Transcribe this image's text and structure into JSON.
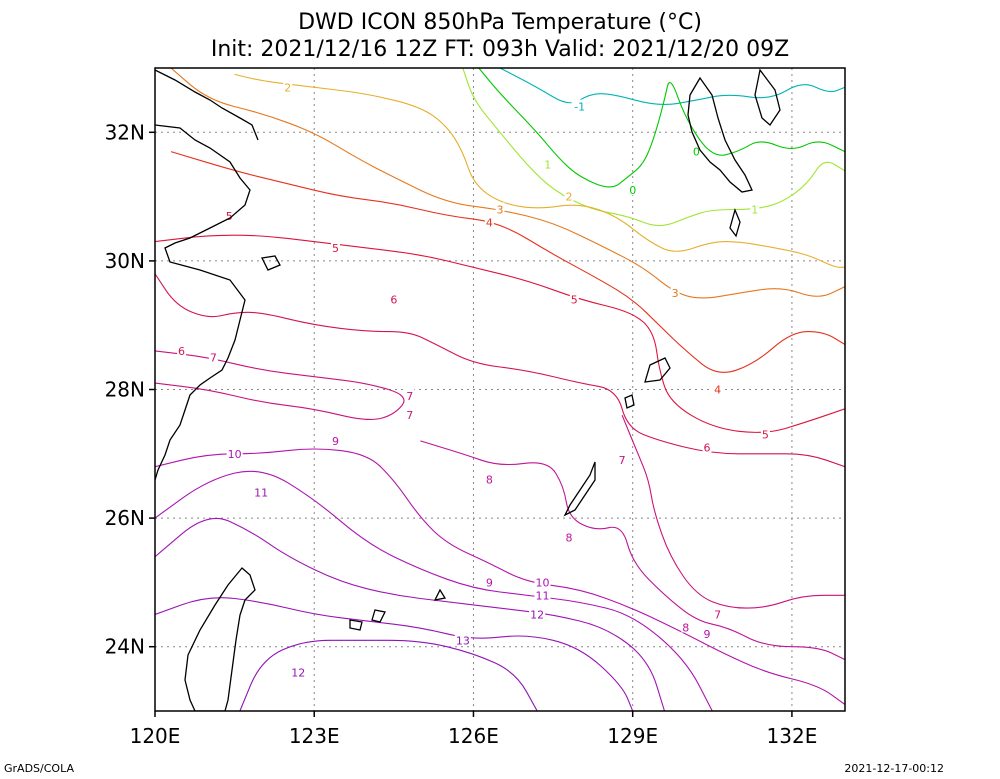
{
  "title_line1": "DWD ICON 850hPa Temperature (°C)",
  "title_line2": "Init: 2021/12/16 12Z  FT: 093h  Valid: 2021/12/20 09Z",
  "footer_left": "GrADS/COLA",
  "footer_right": "2021-12-17-00:12",
  "map": {
    "lon_range": [
      120,
      133
    ],
    "lat_range": [
      23,
      33
    ],
    "lon_ticks": [
      {
        "value": 120,
        "label": "120E"
      },
      {
        "value": 123,
        "label": "123E"
      },
      {
        "value": 126,
        "label": "126E"
      },
      {
        "value": 129,
        "label": "129E"
      },
      {
        "value": 132,
        "label": "132E"
      }
    ],
    "lat_ticks": [
      {
        "value": 24,
        "label": "24N"
      },
      {
        "value": 26,
        "label": "26N"
      },
      {
        "value": 28,
        "label": "28N"
      },
      {
        "value": 30,
        "label": "30N"
      },
      {
        "value": 32,
        "label": "32N"
      }
    ],
    "grid": "dotted"
  },
  "contours": [
    {
      "label": "-1",
      "color": "#00b4b4",
      "points": [
        [
          126.5,
          33
        ],
        [
          127.2,
          32.7
        ],
        [
          127.8,
          32.4
        ],
        [
          128.2,
          32.6
        ],
        [
          128.6,
          32.6
        ],
        [
          129.5,
          32.4
        ],
        [
          130.2,
          32.5
        ],
        [
          130.8,
          32.6
        ],
        [
          131.6,
          32.5
        ],
        [
          132.2,
          32.8
        ],
        [
          132.7,
          32.6
        ],
        [
          133,
          32.7
        ]
      ]
    },
    {
      "label": "0",
      "color": "#00c800",
      "points": [
        [
          126.1,
          33
        ],
        [
          126.5,
          32.6
        ],
        [
          127.2,
          32.0
        ],
        [
          127.6,
          31.6
        ],
        [
          128.0,
          31.3
        ],
        [
          128.6,
          31.1
        ],
        [
          128.9,
          31.3
        ],
        [
          129.2,
          31.5
        ],
        [
          129.4,
          31.9
        ],
        [
          129.6,
          32.5
        ],
        [
          129.7,
          32.9
        ],
        [
          130.0,
          32.2
        ],
        [
          130.5,
          31.6
        ],
        [
          131.0,
          31.7
        ],
        [
          131.4,
          31.9
        ],
        [
          132.0,
          31.7
        ],
        [
          132.5,
          31.9
        ],
        [
          133,
          31.7
        ]
      ]
    },
    {
      "label": "1",
      "color": "#a0e632",
      "points": [
        [
          125.8,
          33
        ],
        [
          126.0,
          32.5
        ],
        [
          126.5,
          32.0
        ],
        [
          127.0,
          31.5
        ],
        [
          127.5,
          31.1
        ],
        [
          128.2,
          30.8
        ],
        [
          128.9,
          30.7
        ],
        [
          129.5,
          30.5
        ],
        [
          130.1,
          30.7
        ],
        [
          130.5,
          30.8
        ],
        [
          131.3,
          30.8
        ],
        [
          131.8,
          30.9
        ],
        [
          132.3,
          31.2
        ],
        [
          132.6,
          31.6
        ],
        [
          133,
          31.4
        ]
      ]
    },
    {
      "label": "2",
      "color": "#e6af2d",
      "points": [
        [
          121.5,
          32.9
        ],
        [
          122.0,
          32.8
        ],
        [
          123.0,
          32.7
        ],
        [
          124.0,
          32.6
        ],
        [
          125.0,
          32.4
        ],
        [
          125.5,
          32.1
        ],
        [
          125.8,
          31.7
        ],
        [
          126.0,
          31.2
        ],
        [
          126.5,
          30.9
        ],
        [
          127.2,
          30.8
        ],
        [
          128.0,
          30.9
        ],
        [
          128.7,
          30.7
        ],
        [
          129.3,
          30.3
        ],
        [
          129.8,
          30.1
        ],
        [
          130.5,
          30.3
        ],
        [
          131.0,
          30.3
        ],
        [
          131.7,
          30.2
        ],
        [
          132.3,
          30.1
        ],
        [
          132.8,
          29.9
        ],
        [
          133,
          29.9
        ]
      ]
    },
    {
      "label": "3",
      "color": "#e6781e",
      "points": [
        [
          120.3,
          33
        ],
        [
          121.0,
          32.5
        ],
        [
          122.0,
          32.3
        ],
        [
          123.0,
          32.0
        ],
        [
          123.8,
          31.6
        ],
        [
          124.5,
          31.3
        ],
        [
          125.5,
          30.9
        ],
        [
          126.5,
          30.8
        ],
        [
          127.5,
          30.6
        ],
        [
          128.5,
          30.2
        ],
        [
          129.2,
          29.9
        ],
        [
          129.8,
          29.5
        ],
        [
          130.3,
          29.4
        ],
        [
          131.0,
          29.5
        ],
        [
          131.8,
          29.6
        ],
        [
          132.5,
          29.4
        ],
        [
          133,
          29.6
        ]
      ]
    },
    {
      "label": "4",
      "color": "#e6321e",
      "points": [
        [
          120.3,
          31.7
        ],
        [
          121.5,
          31.4
        ],
        [
          122.5,
          31.2
        ],
        [
          123.5,
          31.0
        ],
        [
          124.5,
          30.9
        ],
        [
          125.5,
          30.7
        ],
        [
          126.5,
          30.6
        ],
        [
          127.5,
          30.1
        ],
        [
          128.4,
          29.7
        ],
        [
          129.0,
          29.4
        ],
        [
          129.5,
          29.0
        ],
        [
          130.0,
          28.6
        ],
        [
          130.6,
          28.2
        ],
        [
          131.3,
          28.4
        ],
        [
          132.0,
          28.9
        ],
        [
          132.6,
          28.9
        ],
        [
          133,
          28.7
        ]
      ]
    },
    {
      "label": "5",
      "color": "#dc143c",
      "points": [
        [
          120.0,
          30.3
        ],
        [
          121.0,
          30.4
        ],
        [
          122.0,
          30.4
        ],
        [
          123.0,
          30.3
        ],
        [
          124.0,
          30.2
        ],
        [
          125.0,
          30.1
        ],
        [
          126.0,
          29.9
        ],
        [
          127.0,
          29.7
        ],
        [
          128.0,
          29.4
        ],
        [
          129.0,
          29.2
        ],
        [
          129.4,
          28.9
        ],
        [
          129.5,
          28.3
        ],
        [
          129.7,
          27.8
        ],
        [
          130.5,
          27.4
        ],
        [
          131.5,
          27.3
        ],
        [
          132.3,
          27.5
        ],
        [
          133,
          27.7
        ]
      ]
    },
    {
      "label": "6",
      "color": "#d2145a",
      "points": [
        [
          120.0,
          29.8
        ],
        [
          120.4,
          29.3
        ],
        [
          121.0,
          29.1
        ],
        [
          121.5,
          29.2
        ],
        [
          122.0,
          29.2
        ],
        [
          123.0,
          29.0
        ],
        [
          124.0,
          28.9
        ],
        [
          124.8,
          28.9
        ],
        [
          125.3,
          28.7
        ],
        [
          126.0,
          28.4
        ],
        [
          127.0,
          28.3
        ],
        [
          128.0,
          28.1
        ],
        [
          128.7,
          28.0
        ],
        [
          128.9,
          27.4
        ],
        [
          129.5,
          27.2
        ],
        [
          130.5,
          27.0
        ],
        [
          131.5,
          27.0
        ],
        [
          132.3,
          27.0
        ],
        [
          133,
          26.8
        ]
      ]
    },
    {
      "label": "7",
      "color": "#c8147d",
      "points": [
        [
          120.0,
          28.6
        ],
        [
          121.0,
          28.5
        ],
        [
          122.0,
          28.3
        ],
        [
          123.0,
          28.2
        ],
        [
          124.0,
          28.1
        ],
        [
          124.8,
          27.9
        ],
        [
          124.5,
          27.6
        ],
        [
          124.0,
          27.5
        ],
        [
          123.0,
          27.7
        ],
        [
          122.0,
          27.8
        ],
        [
          121.0,
          28.0
        ],
        [
          120.0,
          28.1
        ]
      ]
    },
    {
      "label": "7",
      "color": "#c8147d",
      "points": [
        [
          128.8,
          27.6
        ],
        [
          129.1,
          27.0
        ],
        [
          129.3,
          26.6
        ],
        [
          129.4,
          26.1
        ],
        [
          129.7,
          25.4
        ],
        [
          130.2,
          24.8
        ],
        [
          130.8,
          24.6
        ],
        [
          131.5,
          24.6
        ],
        [
          132.2,
          24.8
        ],
        [
          133,
          24.8
        ]
      ]
    },
    {
      "label": "8",
      "color": "#be1496",
      "points": [
        [
          125.0,
          27.2
        ],
        [
          125.8,
          27.0
        ],
        [
          126.5,
          26.8
        ],
        [
          127.4,
          26.9
        ],
        [
          127.7,
          26.5
        ],
        [
          127.8,
          26.0
        ],
        [
          128.3,
          25.8
        ],
        [
          128.8,
          25.9
        ],
        [
          129.0,
          25.3
        ],
        [
          129.6,
          24.8
        ],
        [
          130.2,
          24.4
        ],
        [
          130.8,
          24.3
        ],
        [
          131.5,
          24.0
        ],
        [
          132.5,
          24.0
        ],
        [
          133,
          23.8
        ]
      ]
    },
    {
      "label": "9",
      "color": "#b414aa",
      "points": [
        [
          120.0,
          26.8
        ],
        [
          121.0,
          27.0
        ],
        [
          122.0,
          27.0
        ],
        [
          123.0,
          27.1
        ],
        [
          124.0,
          27.0
        ],
        [
          124.5,
          26.6
        ],
        [
          125.0,
          26.0
        ],
        [
          125.5,
          25.6
        ],
        [
          126.3,
          25.3
        ],
        [
          127.0,
          25.0
        ],
        [
          128.0,
          24.9
        ],
        [
          129.0,
          24.6
        ],
        [
          130.0,
          24.2
        ],
        [
          130.7,
          23.9
        ],
        [
          131.5,
          23.6
        ],
        [
          132.5,
          23.4
        ],
        [
          133,
          23.1
        ]
      ]
    },
    {
      "label": "10",
      "color": "#aa14b4",
      "points": [
        [
          120.0,
          26.0
        ],
        [
          121.0,
          26.6
        ],
        [
          122.0,
          26.8
        ],
        [
          123.0,
          26.3
        ],
        [
          124.0,
          25.6
        ],
        [
          125.0,
          25.2
        ],
        [
          126.0,
          24.9
        ],
        [
          127.0,
          24.8
        ],
        [
          128.0,
          24.7
        ],
        [
          129.0,
          24.5
        ],
        [
          130.0,
          23.8
        ],
        [
          130.5,
          23.0
        ]
      ]
    },
    {
      "label": "11",
      "color": "#a014b4",
      "points": [
        [
          120.0,
          25.4
        ],
        [
          121.0,
          26.1
        ],
        [
          121.8,
          25.8
        ],
        [
          122.5,
          25.4
        ],
        [
          123.5,
          25.0
        ],
        [
          124.5,
          24.8
        ],
        [
          125.5,
          24.7
        ],
        [
          126.5,
          24.6
        ],
        [
          127.5,
          24.5
        ],
        [
          128.5,
          24.3
        ],
        [
          129.3,
          23.8
        ],
        [
          129.6,
          23.0
        ]
      ]
    },
    {
      "label": "12",
      "color": "#9614b4",
      "points": [
        [
          120.0,
          24.5
        ],
        [
          121.0,
          24.8
        ],
        [
          122.0,
          24.7
        ],
        [
          123.0,
          24.5
        ],
        [
          124.0,
          24.4
        ],
        [
          125.0,
          24.3
        ],
        [
          126.0,
          24.1
        ],
        [
          127.0,
          24.2
        ],
        [
          128.0,
          24.0
        ],
        [
          128.8,
          23.4
        ],
        [
          129.0,
          23.0
        ]
      ]
    },
    {
      "label": "13",
      "color": "#8c14b4",
      "points": [
        [
          121.6,
          23.0
        ],
        [
          122.0,
          23.8
        ],
        [
          122.8,
          24.1
        ],
        [
          123.8,
          24.1
        ],
        [
          125.0,
          24.1
        ],
        [
          126.0,
          23.9
        ],
        [
          126.8,
          23.6
        ],
        [
          127.2,
          23.0
        ]
      ]
    }
  ],
  "contour_labels": [
    {
      "text": "-1",
      "lon": 128.0,
      "lat": 32.4,
      "color": "#00b4b4"
    },
    {
      "text": "0",
      "lon": 129.0,
      "lat": 31.1,
      "color": "#00c800"
    },
    {
      "text": "0",
      "lon": 130.2,
      "lat": 31.7,
      "color": "#00c800"
    },
    {
      "text": "1",
      "lon": 127.4,
      "lat": 31.5,
      "color": "#a0e632"
    },
    {
      "text": "1",
      "lon": 131.3,
      "lat": 30.8,
      "color": "#a0e632"
    },
    {
      "text": "2",
      "lon": 122.5,
      "lat": 32.7,
      "color": "#e6af2d"
    },
    {
      "text": "2",
      "lon": 127.8,
      "lat": 31.0,
      "color": "#e6af2d"
    },
    {
      "text": "3",
      "lon": 126.5,
      "lat": 30.8,
      "color": "#e6781e"
    },
    {
      "text": "3",
      "lon": 129.8,
      "lat": 29.5,
      "color": "#e6781e"
    },
    {
      "text": "4",
      "lon": 126.3,
      "lat": 30.6,
      "color": "#e6321e"
    },
    {
      "text": "4",
      "lon": 130.6,
      "lat": 28.0,
      "color": "#e6321e"
    },
    {
      "text": "5",
      "lon": 123.4,
      "lat": 30.2,
      "color": "#dc143c"
    },
    {
      "text": "5",
      "lon": 127.9,
      "lat": 29.4,
      "color": "#dc143c"
    },
    {
      "text": "5",
      "lon": 131.5,
      "lat": 27.3,
      "color": "#dc143c"
    },
    {
      "text": "5",
      "lon": 121.4,
      "lat": 30.7,
      "color": "#dc143c"
    },
    {
      "text": "6",
      "lon": 124.5,
      "lat": 29.4,
      "color": "#d2145a"
    },
    {
      "text": "6",
      "lon": 120.5,
      "lat": 28.6,
      "color": "#d2145a"
    },
    {
      "text": "6",
      "lon": 130.4,
      "lat": 27.1,
      "color": "#d2145a"
    },
    {
      "text": "7",
      "lon": 121.1,
      "lat": 28.5,
      "color": "#c8147d"
    },
    {
      "text": "7",
      "lon": 124.8,
      "lat": 27.9,
      "color": "#c8147d"
    },
    {
      "text": "7",
      "lon": 124.8,
      "lat": 27.6,
      "color": "#c8147d"
    },
    {
      "text": "7",
      "lon": 128.8,
      "lat": 26.9,
      "color": "#c8147d"
    },
    {
      "text": "7",
      "lon": 130.6,
      "lat": 24.5,
      "color": "#c8147d"
    },
    {
      "text": "8",
      "lon": 126.3,
      "lat": 26.6,
      "color": "#be1496"
    },
    {
      "text": "8",
      "lon": 127.8,
      "lat": 25.7,
      "color": "#be1496"
    },
    {
      "text": "8",
      "lon": 130.0,
      "lat": 24.3,
      "color": "#be1496"
    },
    {
      "text": "9",
      "lon": 123.4,
      "lat": 27.2,
      "color": "#b414aa"
    },
    {
      "text": "9",
      "lon": 126.3,
      "lat": 25.0,
      "color": "#b414aa"
    },
    {
      "text": "9",
      "lon": 130.4,
      "lat": 24.2,
      "color": "#b414aa"
    },
    {
      "text": "10",
      "lon": 121.5,
      "lat": 27.0,
      "color": "#aa14b4"
    },
    {
      "text": "10",
      "lon": 127.3,
      "lat": 25.0,
      "color": "#aa14b4"
    },
    {
      "text": "11",
      "lon": 122.0,
      "lat": 26.4,
      "color": "#a014b4"
    },
    {
      "text": "11",
      "lon": 127.3,
      "lat": 24.8,
      "color": "#a014b4"
    },
    {
      "text": "12",
      "lon": 127.2,
      "lat": 24.5,
      "color": "#9614b4"
    },
    {
      "text": "12",
      "lon": 122.7,
      "lat": 23.6,
      "color": "#9614b4"
    },
    {
      "text": "13",
      "lon": 125.8,
      "lat": 24.1,
      "color": "#8c14b4"
    }
  ]
}
